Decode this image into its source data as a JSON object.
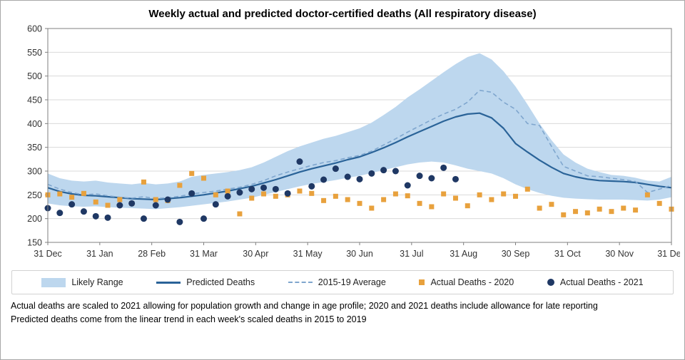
{
  "title": "Weekly actual and predicted doctor-certified deaths (All respiratory disease)",
  "colors": {
    "band": "#BDD7EE",
    "predicted": "#2A6398",
    "average": "#7FA6CE",
    "squares": "#E8A13D",
    "circles": "#1F3864",
    "grid": "#D9D9D9",
    "axis": "#7F7F7F"
  },
  "legend": [
    {
      "label": "Likely Range"
    },
    {
      "label": "Predicted Deaths"
    },
    {
      "label": "2015-19 Average"
    },
    {
      "label": "Actual Deaths - 2020"
    },
    {
      "label": "Actual Deaths - 2021"
    }
  ],
  "footnotes": [
    "Actual deaths are scaled to 2021 allowing for population growth and change in age profile; 2020 and 2021 deaths include allowance for late reporting",
    "Predicted deaths come from the linear trend in each week's scaled deaths in 2015 to 2019"
  ],
  "chart_data": {
    "type": "line",
    "title": "Weekly actual and predicted doctor-certified deaths (All respiratory disease)",
    "xlabel": "",
    "ylabel": "",
    "ylim": [
      150,
      600
    ],
    "y_ticks": [
      150,
      200,
      250,
      300,
      350,
      400,
      450,
      500,
      550,
      600
    ],
    "x_max": 52,
    "x_tick_labels": [
      "31 Dec",
      "31 Jan",
      "28 Feb",
      "31 Mar",
      "30 Apr",
      "31 May",
      "30 Jun",
      "31 Jul",
      "31 Aug",
      "30 Sep",
      "31 Oct",
      "30 Nov",
      "31 Dec"
    ],
    "grid": true,
    "legend_position": "bottom",
    "series": [
      {
        "name": "Likely Range",
        "type": "band",
        "color": "#BDD7EE",
        "upper": [
          295,
          285,
          280,
          278,
          280,
          276,
          274,
          272,
          275,
          272,
          274,
          278,
          288,
          292,
          295,
          298,
          302,
          308,
          318,
          330,
          342,
          352,
          360,
          368,
          374,
          382,
          390,
          402,
          418,
          435,
          455,
          472,
          490,
          508,
          525,
          540,
          548,
          535,
          510,
          478,
          440,
          400,
          365,
          335,
          318,
          305,
          298,
          292,
          290,
          286,
          280,
          278,
          288
        ],
        "lower": [
          232,
          228,
          226,
          225,
          226,
          224,
          223,
          222,
          221,
          220,
          222,
          224,
          227,
          230,
          233,
          236,
          240,
          244,
          250,
          256,
          262,
          268,
          273,
          277,
          281,
          286,
          290,
          296,
          302,
          308,
          314,
          318,
          320,
          318,
          312,
          305,
          300,
          295,
          285,
          272,
          262,
          254,
          248,
          244,
          242,
          241,
          240,
          240,
          240,
          239,
          238,
          240,
          245
        ]
      },
      {
        "name": "Predicted Deaths",
        "type": "line",
        "color": "#2A6398",
        "width": 2.2,
        "values": [
          265,
          257,
          252,
          249,
          248,
          246,
          244,
          242,
          241,
          240,
          242,
          244,
          247,
          250,
          254,
          258,
          263,
          268,
          275,
          282,
          290,
          298,
          305,
          311,
          317,
          324,
          330,
          339,
          349,
          360,
          372,
          383,
          394,
          405,
          414,
          420,
          422,
          412,
          390,
          358,
          340,
          323,
          308,
          295,
          288,
          283,
          280,
          279,
          278,
          276,
          272,
          268,
          265
        ]
      },
      {
        "name": "2015-19 Average",
        "type": "dashed-line",
        "color": "#7FA6CE",
        "width": 1.6,
        "values": [
          272,
          262,
          255,
          250,
          252,
          248,
          245,
          243,
          246,
          242,
          244,
          247,
          252,
          255,
          258,
          262,
          266,
          272,
          280,
          290,
          298,
          305,
          312,
          318,
          322,
          328,
          333,
          342,
          355,
          368,
          382,
          395,
          408,
          420,
          430,
          445,
          470,
          466,
          445,
          430,
          400,
          396,
          352,
          310,
          300,
          290,
          288,
          285,
          282,
          278,
          255,
          262,
          270
        ]
      },
      {
        "name": "Actual Deaths - 2020",
        "type": "scatter-square",
        "color": "#E8A13D",
        "values": [
          250,
          252,
          245,
          253,
          235,
          228,
          240,
          232,
          277,
          240,
          238,
          270,
          295,
          285,
          250,
          258,
          210,
          243,
          252,
          247,
          250,
          258,
          253,
          238,
          247,
          240,
          232,
          222,
          240,
          252,
          248,
          232,
          225,
          252,
          243,
          227,
          250,
          240,
          252,
          247,
          262,
          222,
          230,
          208,
          215,
          212,
          220,
          215,
          222,
          218,
          250,
          232,
          220
        ]
      },
      {
        "name": "Actual Deaths - 2021",
        "type": "scatter-circle",
        "color": "#1F3864",
        "values": [
          222,
          212,
          230,
          215,
          205,
          202,
          228,
          232,
          200,
          228,
          240,
          193,
          253,
          200,
          230,
          247,
          255,
          262,
          265,
          262,
          253,
          320,
          268,
          282,
          305,
          288,
          283,
          295,
          302,
          300,
          270,
          290,
          285,
          307,
          283
        ]
      }
    ]
  }
}
